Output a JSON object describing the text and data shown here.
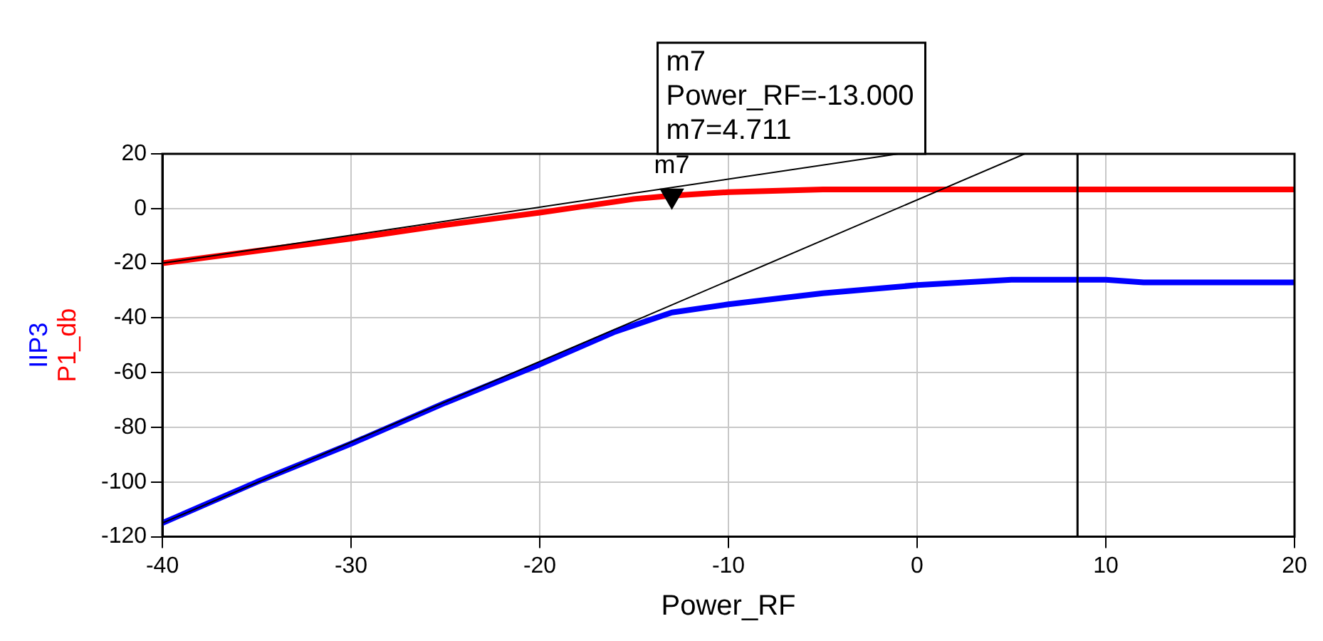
{
  "chart_data": {
    "type": "line",
    "xlabel": "Power_RF",
    "xlim": [
      -40,
      20
    ],
    "xticks": [
      -40,
      -30,
      -20,
      -10,
      0,
      10,
      20
    ],
    "ylim": [
      -120,
      20
    ],
    "yticks": [
      -120,
      -100,
      -80,
      -60,
      -40,
      -20,
      0,
      20
    ],
    "grid": true,
    "legend": false,
    "series": [
      {
        "name": "IIP3",
        "color": "#0000ff",
        "x": [
          -40,
          -35,
          -30,
          -25,
          -20,
          -16,
          -13,
          -10,
          -5,
          0,
          5,
          10,
          12,
          20
        ],
        "values": [
          -115,
          -100,
          -86,
          -71,
          -57,
          -45,
          -38,
          -35,
          -31,
          -28,
          -26,
          -26,
          -27,
          -27
        ]
      },
      {
        "name": "P1_db",
        "color": "#ff0000",
        "x": [
          -40,
          -35,
          -30,
          -25,
          -20,
          -15,
          -13,
          -10,
          -5,
          0,
          5,
          10,
          20
        ],
        "values": [
          -20,
          -15.5,
          -11,
          -6,
          -1.5,
          3.5,
          4.7,
          6,
          7,
          7,
          7,
          7,
          7
        ]
      },
      {
        "type": "line",
        "color": "#000000",
        "x": [
          -40,
          -1
        ],
        "values": [
          -20,
          20
        ]
      },
      {
        "type": "line",
        "color": "#000000",
        "x": [
          -40,
          5.7
        ],
        "values": [
          -115,
          20
        ]
      },
      {
        "type": "scatter",
        "marker": "triangle",
        "color": "#000000",
        "x": [
          -13
        ],
        "values": [
          4.711
        ]
      }
    ],
    "ref_lines": [
      {
        "axis": "x",
        "value": 8.5,
        "color": "#000000"
      }
    ],
    "annotations": [
      {
        "text": "m7",
        "x": -13,
        "y": 4.711
      },
      "m7\nPower_RF=-13.000\nm7=4.711"
    ]
  }
}
